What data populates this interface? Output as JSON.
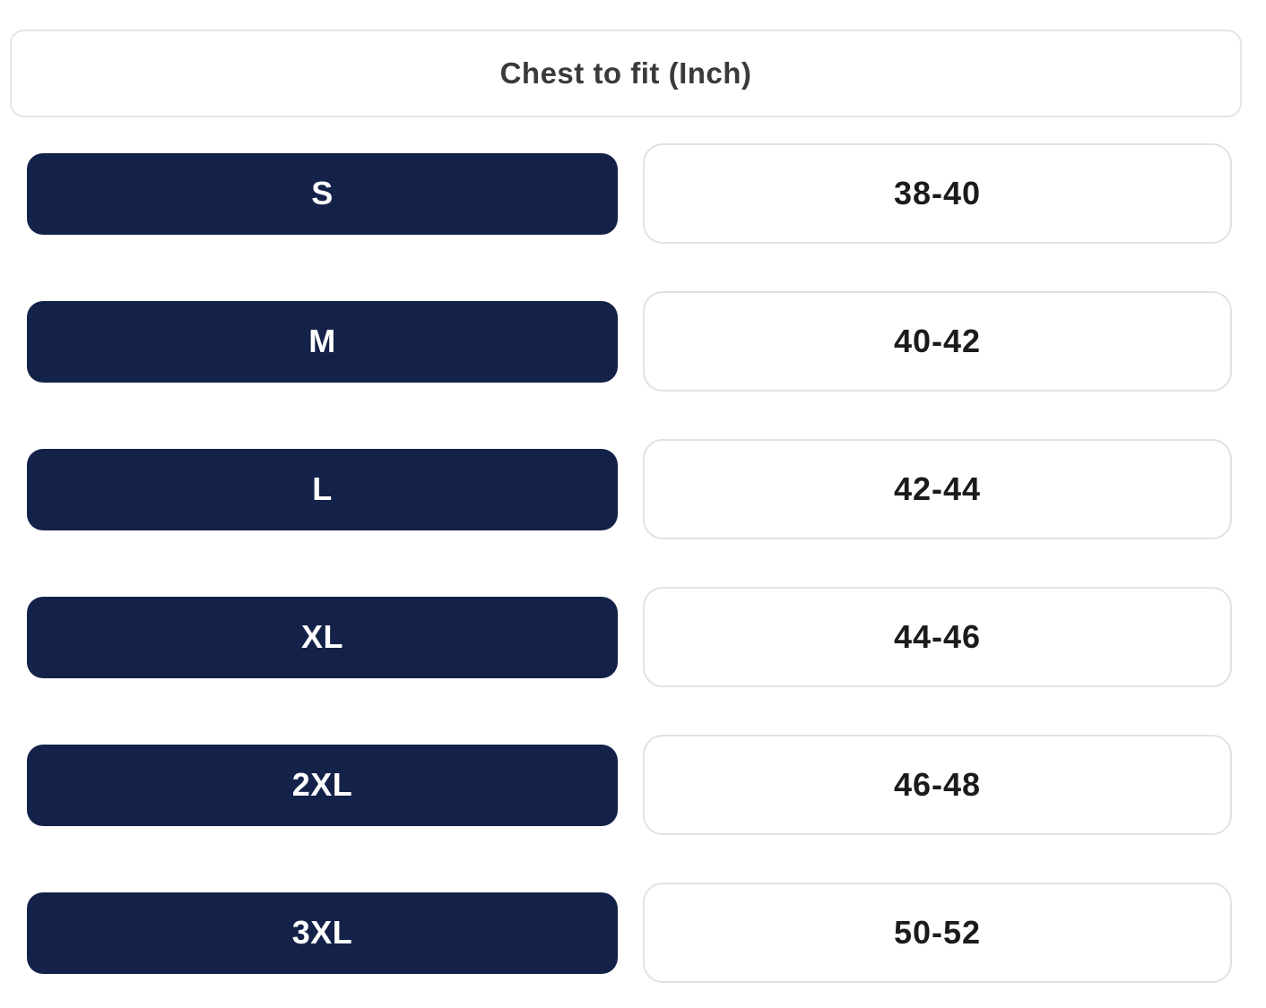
{
  "table": {
    "header_label": "Chest to fit (Inch)",
    "rows": [
      {
        "size": "S",
        "range": "38-40"
      },
      {
        "size": "M",
        "range": "40-42"
      },
      {
        "size": "L",
        "range": "42-44"
      },
      {
        "size": "XL",
        "range": "44-46"
      },
      {
        "size": "2XL",
        "range": "46-48"
      },
      {
        "size": "3XL",
        "range": "50-52"
      }
    ],
    "colors": {
      "pill_background": "#142249",
      "pill_text": "#ffffff",
      "header_text": "#3a3a3a",
      "value_text": "#1b1b1e",
      "box_border": "#e2e2e2",
      "page_background": "#ffffff"
    }
  }
}
